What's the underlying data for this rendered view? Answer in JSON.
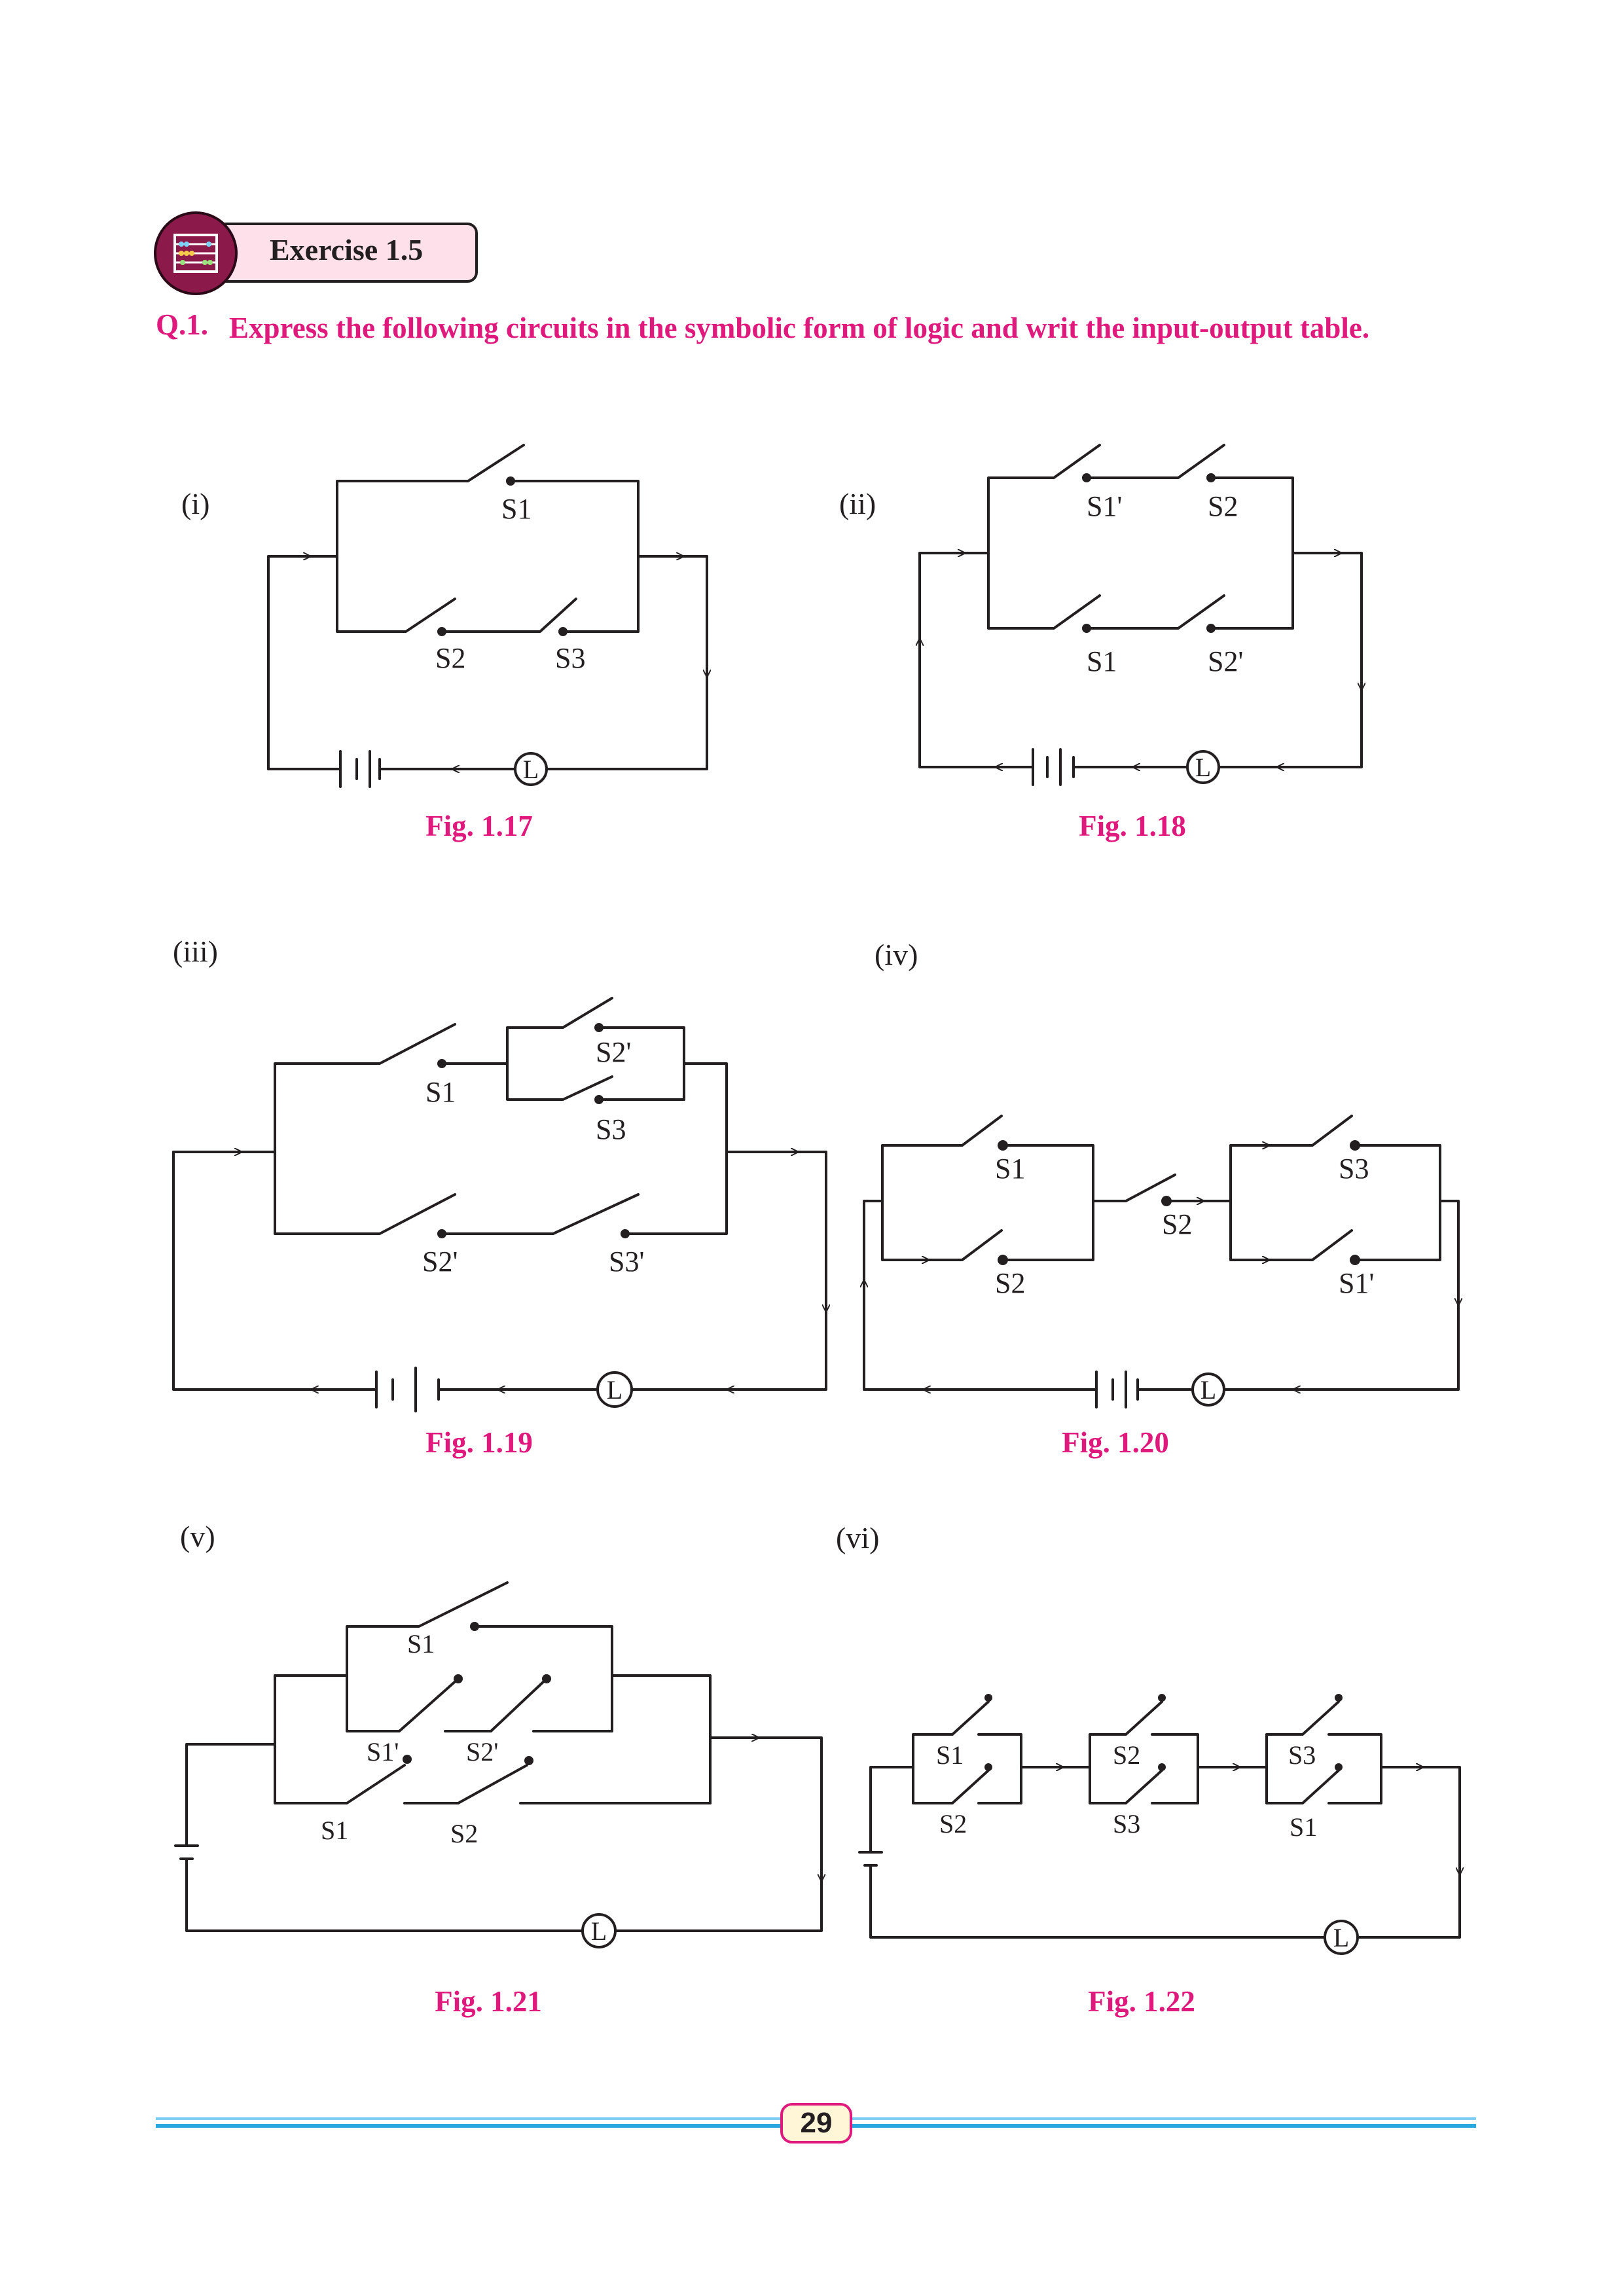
{
  "header": {
    "exercise_title": "Exercise 1.5"
  },
  "question": {
    "number": "Q.1.",
    "text": "Express the following circuits in the symbolic form of logic and writ the input-output table."
  },
  "parts": [
    "(i)",
    "(ii)",
    "(iii)",
    "(iv)",
    "(v)",
    "(vi)"
  ],
  "figures": [
    "Fig. 1.17",
    "Fig. 1.18",
    "Fig. 1.19",
    "Fig. 1.20",
    "Fig. 1.21",
    "Fig. 1.22"
  ],
  "switch_labels": {
    "fig_1_17": [
      "S1",
      "S2",
      "S3"
    ],
    "fig_1_18": [
      "S1'",
      "S2",
      "S1",
      "S2'"
    ],
    "fig_1_19": [
      "S1",
      "S2'",
      "S3",
      "S2'",
      "S3'"
    ],
    "fig_1_20": [
      "S1",
      "S2",
      "S2",
      "S3",
      "S1'"
    ],
    "fig_1_21": [
      "S1",
      "S1'",
      "S2'",
      "S1",
      "S2"
    ],
    "fig_1_22": [
      "S1",
      "S2",
      "S2",
      "S3",
      "S3",
      "S1"
    ]
  },
  "lamp_label": "L",
  "page_number": "29",
  "colors": {
    "accent_magenta": "#e0197d",
    "badge_fill": "#fde0ea",
    "footer_blue": "#29a8e0"
  }
}
